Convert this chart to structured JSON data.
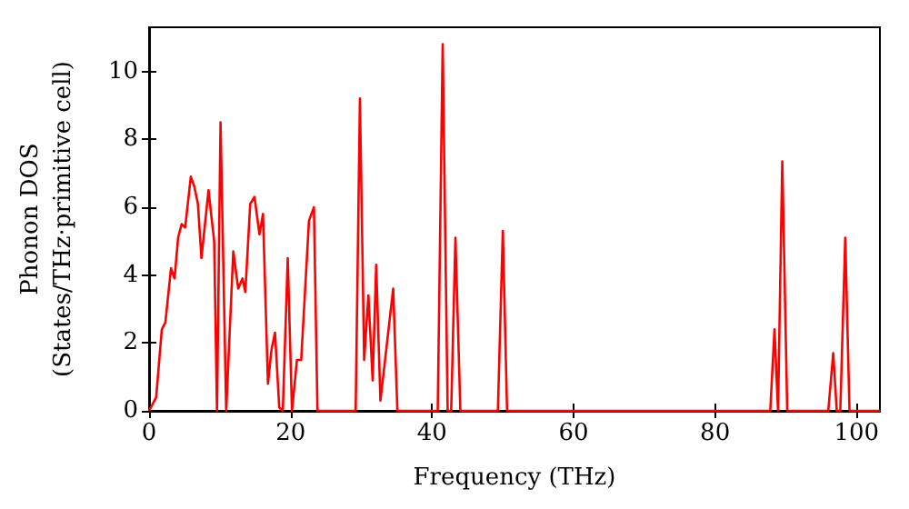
{
  "chart_data": {
    "type": "line",
    "xlabel": "Frequency (THz)",
    "ylabel": "Phonon DOS\n(States/THz·primitive cell)",
    "x": [
      0,
      0.5,
      1,
      1.8,
      2.3,
      3.1,
      3.6,
      4.1,
      4.6,
      5.1,
      5.9,
      6.4,
      6.9,
      7.4,
      8.4,
      9.2,
      9.6,
      10.1,
      10.9,
      11.9,
      12.6,
      13.2,
      13.6,
      14.3,
      14.9,
      15.6,
      16.1,
      16.8,
      17.3,
      17.8,
      18.4,
      18.9,
      19.6,
      20.2,
      20.9,
      21.5,
      22.6,
      23.3,
      23.8,
      29.2,
      29.8,
      30.4,
      31.0,
      31.6,
      32.1,
      32.7,
      34.5,
      35.1,
      40.8,
      41.5,
      42.2,
      42.7,
      43.3,
      44.0,
      49.3,
      50.0,
      50.6,
      87.8,
      88.4,
      88.9,
      89.5,
      90.2,
      96.0,
      96.7,
      97.2,
      97.7,
      98.4,
      99.0,
      103.3
    ],
    "series": [
      {
        "color": "#ff0000",
        "values": [
          0,
          0.2,
          0.4,
          2.4,
          2.6,
          4.2,
          3.9,
          5.1,
          5.5,
          5.4,
          6.9,
          6.6,
          6.1,
          4.5,
          6.5,
          5.0,
          0,
          8.5,
          0,
          4.7,
          3.6,
          3.9,
          3.5,
          6.1,
          6.3,
          5.2,
          5.8,
          0.8,
          1.8,
          2.3,
          0.1,
          0,
          4.5,
          0,
          1.5,
          1.5,
          5.6,
          6.0,
          0,
          0,
          9.2,
          1.5,
          3.4,
          0.9,
          4.3,
          0.3,
          3.6,
          0,
          0,
          10.8,
          0,
          0,
          5.1,
          0,
          0,
          5.3,
          0,
          0,
          2.4,
          0,
          7.35,
          0,
          0,
          1.7,
          0,
          0,
          5.1,
          0,
          0
        ]
      }
    ],
    "xlim": [
      0,
      103.3
    ],
    "ylim": [
      0,
      11.3
    ],
    "xticks": [
      0,
      20,
      40,
      60,
      80,
      100
    ],
    "yticks": [
      0,
      2,
      4,
      6,
      8,
      10
    ],
    "grid": false,
    "marker": "none",
    "line_style": "solid"
  }
}
